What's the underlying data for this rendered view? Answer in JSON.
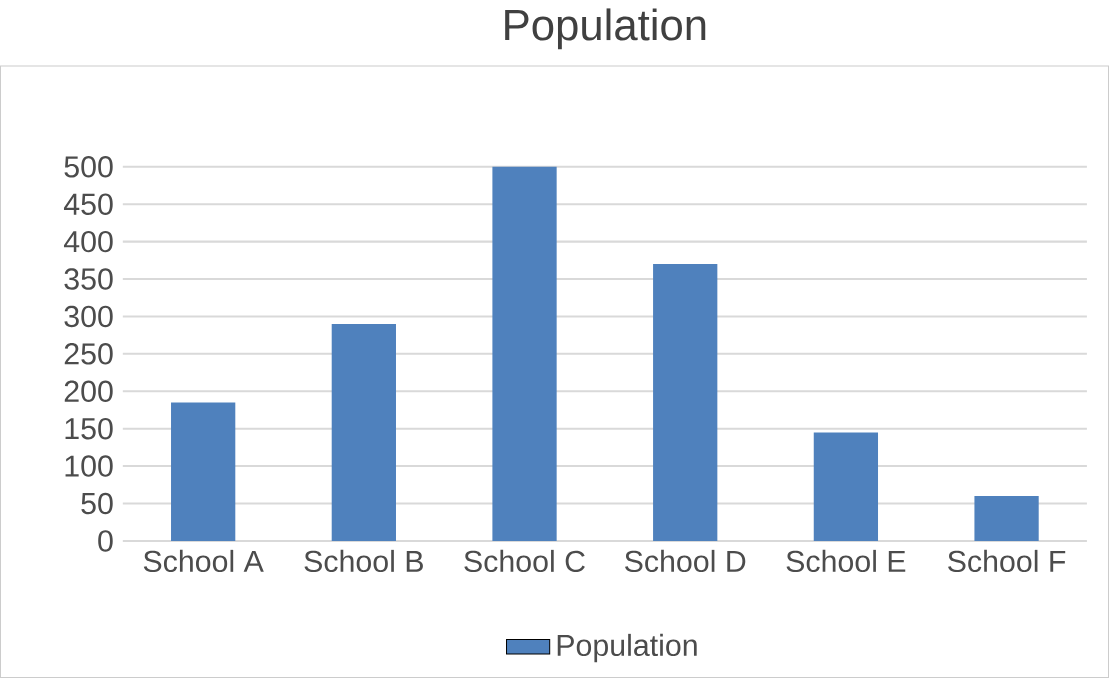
{
  "chart_data": {
    "type": "bar",
    "title": "Population",
    "categories": [
      "School A",
      "School B",
      "School C",
      "School D",
      "School E",
      "School F"
    ],
    "series": [
      {
        "name": "Population",
        "color": "#4f81bd",
        "values": [
          185,
          290,
          500,
          370,
          145,
          60
        ]
      }
    ],
    "ylim": [
      0,
      500
    ],
    "yticks": [
      0,
      50,
      100,
      150,
      200,
      250,
      300,
      350,
      400,
      450,
      500
    ],
    "grid": "y",
    "legend": "bottom"
  }
}
